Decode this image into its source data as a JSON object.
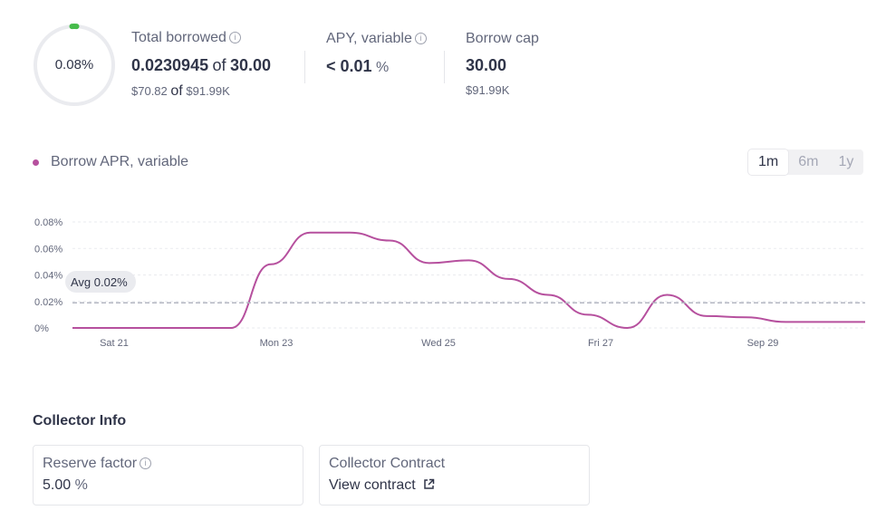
{
  "utilization": {
    "percent_label": "0.08%",
    "fraction": 0.0008
  },
  "total_borrowed": {
    "title": "Total borrowed",
    "amount": "0.0230945",
    "of_label": "of",
    "cap_amount": "30.00",
    "usd_symbol": "$",
    "usd_amount": "70.82",
    "usd_of_label": "of",
    "usd_cap_symbol": "$",
    "usd_cap": "91.99K"
  },
  "apy": {
    "title": "APY, variable",
    "value": "< 0.01",
    "suffix": "%"
  },
  "borrow_cap": {
    "title": "Borrow cap",
    "amount": "30.00",
    "usd_symbol": "$",
    "usd_amount": "91.99K"
  },
  "chart_header": {
    "legend_label": "Borrow APR, variable",
    "ranges": [
      "1m",
      "6m",
      "1y"
    ],
    "active_range": "1m"
  },
  "chart_data": {
    "type": "line",
    "x": [
      "Sep 20",
      "Sep 20.5",
      "Sep 21",
      "Sep 21.5",
      "Sep 22",
      "Sep 22.3",
      "Sep 22.6",
      "Sep 23",
      "Sep 23.5",
      "Sep 24",
      "Sep 24.5",
      "Sep 25",
      "Sep 25.5",
      "Sep 26",
      "Sep 26.4",
      "Sep 26.7",
      "Sep 27",
      "Sep 27.5",
      "Sep 28",
      "Sep 29",
      "Sep 30"
    ],
    "series": [
      {
        "name": "Borrow APR, variable",
        "values": [
          0.0,
          0.0,
          0.0,
          0.0,
          0.0,
          0.048,
          0.072,
          0.072,
          0.066,
          0.049,
          0.051,
          0.037,
          0.025,
          0.01,
          0.0,
          0.025,
          0.009,
          0.008,
          0.0045,
          0.0045,
          0.0045
        ]
      }
    ],
    "y_ticks": [
      "0.08%",
      "0.06%",
      "0.04%",
      "0.02%",
      "0%"
    ],
    "x_ticks": [
      "Sat 21",
      "Mon 23",
      "Wed 25",
      "Fri 27",
      "Sep 29"
    ],
    "ylim": [
      0,
      0.08
    ],
    "average": {
      "label": "Avg 0.02%",
      "value": 0.019
    },
    "grid": true,
    "color": "#b6509e"
  },
  "collector": {
    "heading": "Collector Info",
    "reserve_factor": {
      "title": "Reserve factor",
      "value": "5.00",
      "suffix": "%"
    },
    "contract": {
      "title": "Collector Contract",
      "link_label": "View contract"
    }
  },
  "colors": {
    "accent": "#b6509e",
    "ring_fill": "#46bc4b",
    "ring_track": "#eaebef"
  },
  "icons": [
    "info-icon",
    "external-link-icon"
  ]
}
